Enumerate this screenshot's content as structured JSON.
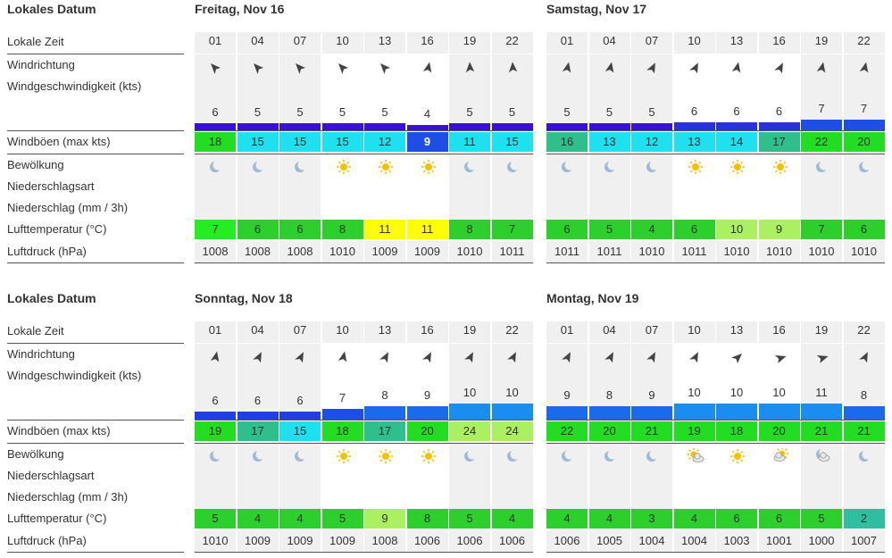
{
  "labels": {
    "lokales_datum": "Lokales Datum",
    "lokale_zeit": "Lokale Zeit",
    "windrichtung": "Windrichtung",
    "windgeschwindigkeit": "Windgeschwindigkeit  (kts)",
    "windboeen": "Windböen  (max kts)",
    "bewoelkung": "Bewölkung",
    "niederschlagsart": "Niederschlagsart",
    "niederschlag": "Niederschlag  (mm / 3h)",
    "lufttemperatur": "Lufttemperatur  (°C)",
    "luftdruck": "Luftdruck  (hPa)"
  },
  "colors": {
    "wind_bar_dark": "#3a10d8",
    "wind_bar_mid": "#1f4ee6",
    "wind_bar_light": "#1a8ef0",
    "gust_green": "#22dd22",
    "gust_teal": "#2fbf8c",
    "gust_cyan": "#1ee0ee",
    "gust_blue": "#1f4ee6",
    "temp_green_bright": "#22ee22",
    "temp_green": "#2ccf2c",
    "temp_yellow": "#ffff00",
    "temp_lightgreen": "#aaf060",
    "temp_teal": "#2fbfa0",
    "sun": "#f5c000",
    "moon": "#9fbad2",
    "arrow": "#444444"
  },
  "blocks": [
    {
      "days": [
        {
          "title": "Freitag, Nov 16",
          "cells": [
            {
              "time": "01",
              "dir": "nw-down",
              "speed": "6",
              "gust": "18",
              "gust_color": "#22dd22",
              "icon": "moon-icon",
              "temp": "7",
              "temp_color": "#22ee22",
              "pressure": "1008",
              "night": true,
              "bar": "#3a10d8",
              "bar_h": 9
            },
            {
              "time": "04",
              "dir": "nw-down",
              "speed": "5",
              "gust": "15",
              "gust_color": "#1ee0ee",
              "icon": "moon-icon",
              "temp": "6",
              "temp_color": "#2ccf2c",
              "pressure": "1008",
              "night": true,
              "bar": "#3a10d8",
              "bar_h": 9
            },
            {
              "time": "07",
              "dir": "nw-down",
              "speed": "5",
              "gust": "15",
              "gust_color": "#1ee0ee",
              "icon": "moon-icon",
              "temp": "6",
              "temp_color": "#2ccf2c",
              "pressure": "1008",
              "night": true,
              "bar": "#3a10d8",
              "bar_h": 9
            },
            {
              "time": "10",
              "dir": "nw-down",
              "speed": "5",
              "gust": "15",
              "gust_color": "#1ee0ee",
              "icon": "sun-icon",
              "temp": "8",
              "temp_color": "#2ccf2c",
              "pressure": "1010",
              "night": false,
              "bar": "#3a10d8",
              "bar_h": 9
            },
            {
              "time": "13",
              "dir": "nw-down",
              "speed": "5",
              "gust": "12",
              "gust_color": "#1ee0ee",
              "icon": "sun-icon",
              "temp": "11",
              "temp_color": "#ffff00",
              "pressure": "1009",
              "night": false,
              "bar": "#3a10d8",
              "bar_h": 9
            },
            {
              "time": "16",
              "dir": "w",
              "speed": "4",
              "gust": "9",
              "gust_color": "#1f4ee6",
              "icon": "sun-icon",
              "temp": "11",
              "temp_color": "#ffff00",
              "pressure": "1009",
              "night": false,
              "bar": "#3a10d8",
              "bar_h": 7
            },
            {
              "time": "19",
              "dir": "w-down",
              "speed": "5",
              "gust": "11",
              "gust_color": "#1ee0ee",
              "icon": "moon-icon",
              "temp": "8",
              "temp_color": "#2ccf2c",
              "pressure": "1010",
              "night": true,
              "bar": "#3a10d8",
              "bar_h": 9
            },
            {
              "time": "22",
              "dir": "w-down",
              "speed": "5",
              "gust": "15",
              "gust_color": "#1ee0ee",
              "icon": "moon-icon",
              "temp": "7",
              "temp_color": "#2ccf2c",
              "pressure": "1011",
              "night": true,
              "bar": "#3a10d8",
              "bar_h": 9
            }
          ]
        },
        {
          "title": "Samstag, Nov 17",
          "cells": [
            {
              "time": "01",
              "dir": "w",
              "speed": "5",
              "gust": "16",
              "gust_color": "#2fbf8c",
              "icon": "moon-icon",
              "temp": "6",
              "temp_color": "#2ccf2c",
              "pressure": "1011",
              "night": true,
              "bar": "#3a10d8",
              "bar_h": 9
            },
            {
              "time": "04",
              "dir": "w",
              "speed": "5",
              "gust": "13",
              "gust_color": "#1ee0ee",
              "icon": "moon-icon",
              "temp": "5",
              "temp_color": "#2ccf2c",
              "pressure": "1011",
              "night": true,
              "bar": "#3a10d8",
              "bar_h": 9
            },
            {
              "time": "07",
              "dir": "w-up",
              "speed": "5",
              "gust": "12",
              "gust_color": "#1ee0ee",
              "icon": "moon-icon",
              "temp": "4",
              "temp_color": "#2ccf2c",
              "pressure": "1010",
              "night": true,
              "bar": "#3a10d8",
              "bar_h": 9
            },
            {
              "time": "10",
              "dir": "w-up",
              "speed": "6",
              "gust": "13",
              "gust_color": "#1ee0ee",
              "icon": "sun-icon",
              "temp": "6",
              "temp_color": "#2ccf2c",
              "pressure": "1011",
              "night": false,
              "bar": "#2a30e0",
              "bar_h": 10
            },
            {
              "time": "13",
              "dir": "w",
              "speed": "6",
              "gust": "14",
              "gust_color": "#1ee0ee",
              "icon": "sun-icon",
              "temp": "10",
              "temp_color": "#aaf060",
              "pressure": "1010",
              "night": false,
              "bar": "#2a30e0",
              "bar_h": 10
            },
            {
              "time": "16",
              "dir": "w-up",
              "speed": "6",
              "gust": "17",
              "gust_color": "#2fbf8c",
              "icon": "sun-icon",
              "temp": "9",
              "temp_color": "#aaf060",
              "pressure": "1010",
              "night": false,
              "bar": "#2a30e0",
              "bar_h": 10
            },
            {
              "time": "19",
              "dir": "w",
              "speed": "7",
              "gust": "22",
              "gust_color": "#22dd22",
              "icon": "moon-icon",
              "temp": "7",
              "temp_color": "#2ccf2c",
              "pressure": "1010",
              "night": true,
              "bar": "#1f4ee6",
              "bar_h": 13
            },
            {
              "time": "22",
              "dir": "w",
              "speed": "7",
              "gust": "20",
              "gust_color": "#22dd22",
              "icon": "moon-icon",
              "temp": "6",
              "temp_color": "#2ccf2c",
              "pressure": "1010",
              "night": true,
              "bar": "#1f4ee6",
              "bar_h": 13
            }
          ]
        }
      ]
    },
    {
      "days": [
        {
          "title": "Sonntag, Nov 18",
          "cells": [
            {
              "time": "01",
              "dir": "w",
              "speed": "6",
              "gust": "19",
              "gust_color": "#22dd22",
              "icon": "moon-icon",
              "temp": "5",
              "temp_color": "#2ccf2c",
              "pressure": "1010",
              "night": true,
              "bar": "#1f3ee6",
              "bar_h": 10
            },
            {
              "time": "04",
              "dir": "w-up",
              "speed": "6",
              "gust": "17",
              "gust_color": "#2fbf8c",
              "icon": "moon-icon",
              "temp": "4",
              "temp_color": "#2ccf2c",
              "pressure": "1009",
              "night": true,
              "bar": "#1f3ee6",
              "bar_h": 10
            },
            {
              "time": "07",
              "dir": "w-up",
              "speed": "6",
              "gust": "15",
              "gust_color": "#1ee0ee",
              "icon": "moon-icon",
              "temp": "4",
              "temp_color": "#2ccf2c",
              "pressure": "1009",
              "night": true,
              "bar": "#1f3ee6",
              "bar_h": 10
            },
            {
              "time": "10",
              "dir": "w",
              "speed": "7",
              "gust": "18",
              "gust_color": "#22dd22",
              "icon": "sun-icon",
              "temp": "5",
              "temp_color": "#2ccf2c",
              "pressure": "1009",
              "night": false,
              "bar": "#1f4ee6",
              "bar_h": 13
            },
            {
              "time": "13",
              "dir": "w-up",
              "speed": "8",
              "gust": "17",
              "gust_color": "#2fbf8c",
              "icon": "sun-icon",
              "temp": "9",
              "temp_color": "#aaf060",
              "pressure": "1008",
              "night": false,
              "bar": "#1a6aec",
              "bar_h": 16
            },
            {
              "time": "16",
              "dir": "w-up",
              "speed": "9",
              "gust": "20",
              "gust_color": "#22dd22",
              "icon": "sun-icon",
              "temp": "8",
              "temp_color": "#2ccf2c",
              "pressure": "1006",
              "night": false,
              "bar": "#1a6aec",
              "bar_h": 16
            },
            {
              "time": "19",
              "dir": "w-up",
              "speed": "10",
              "gust": "24",
              "gust_color": "#aaf060",
              "icon": "moon-icon",
              "temp": "5",
              "temp_color": "#2ccf2c",
              "pressure": "1006",
              "night": true,
              "bar": "#1a8ef0",
              "bar_h": 19
            },
            {
              "time": "22",
              "dir": "w-up",
              "speed": "10",
              "gust": "24",
              "gust_color": "#aaf060",
              "icon": "moon-icon",
              "temp": "4",
              "temp_color": "#2ccf2c",
              "pressure": "1006",
              "night": true,
              "bar": "#1a8ef0",
              "bar_h": 19
            }
          ]
        },
        {
          "title": "Montag, Nov 19",
          "cells": [
            {
              "time": "01",
              "dir": "w-up",
              "speed": "9",
              "gust": "22",
              "gust_color": "#22dd22",
              "icon": "moon-icon",
              "temp": "4",
              "temp_color": "#2ccf2c",
              "pressure": "1006",
              "night": true,
              "bar": "#1a6aec",
              "bar_h": 16
            },
            {
              "time": "04",
              "dir": "w-up",
              "speed": "8",
              "gust": "20",
              "gust_color": "#22dd22",
              "icon": "moon-icon",
              "temp": "4",
              "temp_color": "#2ccf2c",
              "pressure": "1005",
              "night": true,
              "bar": "#1a6aec",
              "bar_h": 16
            },
            {
              "time": "07",
              "dir": "w-up",
              "speed": "9",
              "gust": "21",
              "gust_color": "#22dd22",
              "icon": "moon-icon",
              "temp": "3",
              "temp_color": "#2ccf2c",
              "pressure": "1004",
              "night": true,
              "bar": "#1a6aec",
              "bar_h": 16
            },
            {
              "time": "10",
              "dir": "w-up",
              "speed": "10",
              "gust": "19",
              "gust_color": "#22dd22",
              "icon": "sun-cloud-icon",
              "temp": "4",
              "temp_color": "#2ccf2c",
              "pressure": "1004",
              "night": false,
              "bar": "#1a8ef0",
              "bar_h": 19
            },
            {
              "time": "13",
              "dir": "sw-up",
              "speed": "10",
              "gust": "18",
              "gust_color": "#22dd22",
              "icon": "sun-icon",
              "temp": "6",
              "temp_color": "#2ccf2c",
              "pressure": "1003",
              "night": false,
              "bar": "#1a8ef0",
              "bar_h": 19
            },
            {
              "time": "16",
              "dir": "sw",
              "speed": "10",
              "gust": "20",
              "gust_color": "#22dd22",
              "icon": "cloud-sun-icon",
              "temp": "6",
              "temp_color": "#2ccf2c",
              "pressure": "1001",
              "night": false,
              "bar": "#1a8ef0",
              "bar_h": 19
            },
            {
              "time": "19",
              "dir": "sw",
              "speed": "11",
              "gust": "21",
              "gust_color": "#22dd22",
              "icon": "cloud-moon-icon",
              "temp": "5",
              "temp_color": "#2ccf2c",
              "pressure": "1000",
              "night": true,
              "bar": "#1a8ef0",
              "bar_h": 19
            },
            {
              "time": "22",
              "dir": "w-up",
              "speed": "8",
              "gust": "21",
              "gust_color": "#22dd22",
              "icon": "moon-icon",
              "temp": "2",
              "temp_color": "#2fbfa0",
              "pressure": "1007",
              "night": true,
              "bar": "#1a6aec",
              "bar_h": 16
            }
          ]
        }
      ]
    }
  ]
}
